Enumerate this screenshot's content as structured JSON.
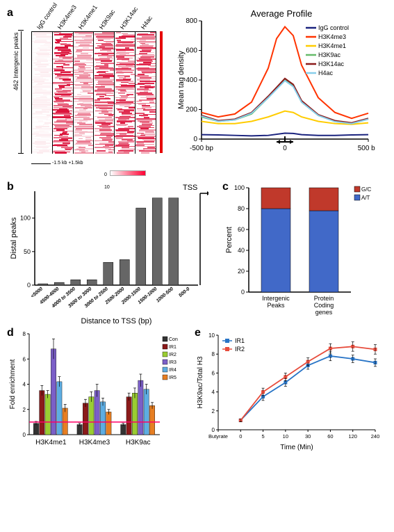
{
  "panelA": {
    "label": "a",
    "heatmap": {
      "columns": [
        "IgG control",
        "H3K4me3",
        "H3K4me1",
        "H3K9ac",
        "H3K14ac",
        "H4ac"
      ],
      "y_label": "462 Intergenic peaks",
      "x_scale": [
        "-1.5 kb",
        "+1.5kb"
      ],
      "legend_min": "0",
      "legend_max": "10",
      "row_count": 462,
      "background_color": "#ffffff"
    },
    "profile": {
      "title": "Average Profile",
      "y_label": "Mean tag density",
      "y_ticks": [
        0,
        200,
        400,
        600,
        800
      ],
      "x_ticks": [
        "-500 bp",
        "0",
        "500 bp"
      ],
      "x_range": [
        -500,
        500
      ],
      "series": [
        {
          "name": "IgG control",
          "color": "#1a237e",
          "data": [
            [
              -500,
              30
            ],
            [
              -400,
              28
            ],
            [
              -300,
              25
            ],
            [
              -200,
              22
            ],
            [
              -100,
              25
            ],
            [
              0,
              40
            ],
            [
              50,
              38
            ],
            [
              100,
              30
            ],
            [
              200,
              25
            ],
            [
              300,
              25
            ],
            [
              400,
              28
            ],
            [
              500,
              30
            ]
          ]
        },
        {
          "name": "H3K4me3",
          "color": "#ff3300",
          "data": [
            [
              -500,
              180
            ],
            [
              -400,
              150
            ],
            [
              -300,
              170
            ],
            [
              -200,
              250
            ],
            [
              -100,
              480
            ],
            [
              -50,
              680
            ],
            [
              0,
              760
            ],
            [
              50,
              700
            ],
            [
              100,
              500
            ],
            [
              200,
              280
            ],
            [
              300,
              180
            ],
            [
              400,
              140
            ],
            [
              500,
              175
            ]
          ]
        },
        {
          "name": "H3K4me1",
          "color": "#ffcc00",
          "data": [
            [
              -500,
              120
            ],
            [
              -400,
              105
            ],
            [
              -300,
              105
            ],
            [
              -200,
              120
            ],
            [
              -100,
              150
            ],
            [
              0,
              190
            ],
            [
              50,
              180
            ],
            [
              100,
              150
            ],
            [
              200,
              120
            ],
            [
              300,
              105
            ],
            [
              400,
              100
            ],
            [
              500,
              110
            ]
          ]
        },
        {
          "name": "H3K9ac",
          "color": "#66bb6a",
          "data": [
            [
              -500,
              150
            ],
            [
              -400,
              120
            ],
            [
              -300,
              130
            ],
            [
              -200,
              170
            ],
            [
              -100,
              280
            ],
            [
              0,
              400
            ],
            [
              50,
              360
            ],
            [
              100,
              250
            ],
            [
              200,
              160
            ],
            [
              300,
              120
            ],
            [
              400,
              105
            ],
            [
              500,
              135
            ]
          ]
        },
        {
          "name": "H3K14ac",
          "color": "#8b1a1a",
          "data": [
            [
              -500,
              160
            ],
            [
              -400,
              125
            ],
            [
              -300,
              135
            ],
            [
              -200,
              180
            ],
            [
              -100,
              290
            ],
            [
              0,
              410
            ],
            [
              50,
              370
            ],
            [
              100,
              260
            ],
            [
              200,
              165
            ],
            [
              300,
              125
            ],
            [
              400,
              110
            ],
            [
              500,
              140
            ]
          ]
        },
        {
          "name": "H4ac",
          "color": "#87ceeb",
          "data": [
            [
              -500,
              155
            ],
            [
              -400,
              120
            ],
            [
              -300,
              130
            ],
            [
              -200,
              175
            ],
            [
              -100,
              280
            ],
            [
              0,
              395
            ],
            [
              50,
              355
            ],
            [
              100,
              250
            ],
            [
              200,
              160
            ],
            [
              300,
              118
            ],
            [
              400,
              105
            ],
            [
              500,
              135
            ]
          ]
        }
      ],
      "legend_fontsize": 10
    }
  },
  "panelB": {
    "label": "b",
    "title": "TSS",
    "y_label": "Distal peaks",
    "x_label": "Distance to TSS (bp)",
    "y_ticks": [
      0,
      50,
      100
    ],
    "categories": [
      "<5000",
      "4500-4000",
      "4000 to 3500",
      "3500 to 3000",
      "3000 to 2500",
      "2500-2000",
      "2000-1500",
      "1500-1000",
      "1000-500",
      "500-0"
    ],
    "values": [
      2,
      4,
      8,
      8,
      34,
      38,
      115,
      130,
      130,
      0
    ],
    "bar_color": "#666666",
    "bar_border": "#000000"
  },
  "panelC": {
    "label": "c",
    "y_label": "Percent",
    "y_ticks": [
      0,
      20,
      40,
      60,
      80,
      100
    ],
    "categories": [
      "Intergenic Peaks",
      "Protein Coding genes"
    ],
    "stacks": [
      {
        "name": "A/T",
        "color": "#4169c8",
        "values": [
          80,
          78
        ]
      },
      {
        "name": "G/C",
        "color": "#c0392b",
        "values": [
          20,
          22
        ]
      }
    ],
    "legend_fontsize": 8
  },
  "panelD": {
    "label": "d",
    "y_label": "Fold enrichment",
    "y_ticks": [
      0,
      2,
      4,
      6,
      8
    ],
    "groups": [
      "H3K4me1",
      "H3K4me3",
      "H3K9ac"
    ],
    "series": [
      {
        "name": "Con",
        "color": "#333333",
        "values": [
          0.9,
          0.8,
          0.8
        ],
        "err": [
          0.15,
          0.1,
          0.1
        ]
      },
      {
        "name": "IR1",
        "color": "#8b1a1a",
        "values": [
          3.5,
          2.5,
          3.0
        ],
        "err": [
          0.4,
          0.3,
          0.3
        ]
      },
      {
        "name": "IR2",
        "color": "#9acd32",
        "values": [
          3.2,
          3.0,
          3.3
        ],
        "err": [
          0.3,
          0.4,
          0.4
        ]
      },
      {
        "name": "IR3",
        "color": "#7b5fc7",
        "values": [
          6.8,
          3.5,
          4.3
        ],
        "err": [
          0.8,
          0.5,
          0.5
        ]
      },
      {
        "name": "IR4",
        "color": "#5dade2",
        "values": [
          4.2,
          2.6,
          3.6
        ],
        "err": [
          0.4,
          0.3,
          0.4
        ]
      },
      {
        "name": "IR5",
        "color": "#e67e22",
        "values": [
          2.1,
          1.8,
          2.3
        ],
        "err": [
          0.3,
          0.2,
          0.25
        ]
      }
    ],
    "ref_line": 1.0,
    "ref_line_color": "#ff0066"
  },
  "panelE": {
    "label": "e",
    "y_label": "H3K9ac/Total H3",
    "x_label": "Time (Min)",
    "y_ticks": [
      0,
      2,
      4,
      6,
      8,
      10
    ],
    "x_categories": [
      "Butyrate",
      "0",
      "5",
      "10",
      "30",
      "60",
      "120",
      "240"
    ],
    "x_len": 8,
    "series": [
      {
        "name": "IR1",
        "color": "#2874c6",
        "marker": "square",
        "values": [
          null,
          1.0,
          3.5,
          5.0,
          6.8,
          7.8,
          7.5,
          7.1
        ],
        "err": [
          0,
          0.15,
          0.4,
          0.4,
          0.4,
          0.5,
          0.4,
          0.4
        ]
      },
      {
        "name": "IR2",
        "color": "#e74c3c",
        "marker": "square",
        "values": [
          null,
          1.0,
          4.0,
          5.6,
          7.2,
          8.6,
          8.8,
          8.5
        ],
        "err": [
          0,
          0.15,
          0.4,
          0.4,
          0.4,
          0.5,
          0.5,
          0.5
        ]
      }
    ]
  }
}
